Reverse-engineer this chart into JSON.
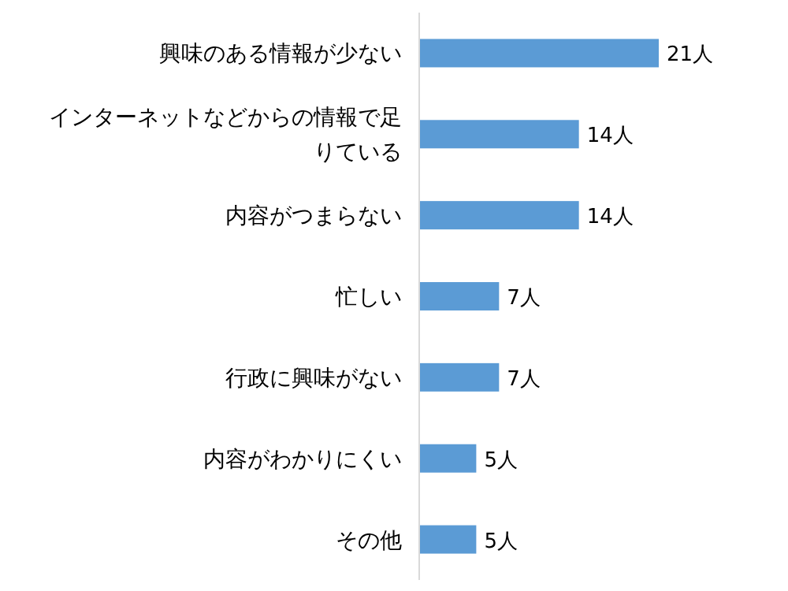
{
  "chart_data": {
    "type": "bar",
    "orientation": "horizontal",
    "categories": [
      "興味のある情報が少ない",
      "インターネットなどからの情報で足りている",
      "内容がつまらない",
      "忙しい",
      "行政に興味がない",
      "内容がわかりにくい",
      "その他"
    ],
    "values": [
      21,
      14,
      14,
      7,
      7,
      5,
      5
    ],
    "value_labels": [
      "21人",
      "14人",
      "14人",
      "7人",
      "7人",
      "5人",
      "5人"
    ],
    "color": "#5b9bd5"
  }
}
